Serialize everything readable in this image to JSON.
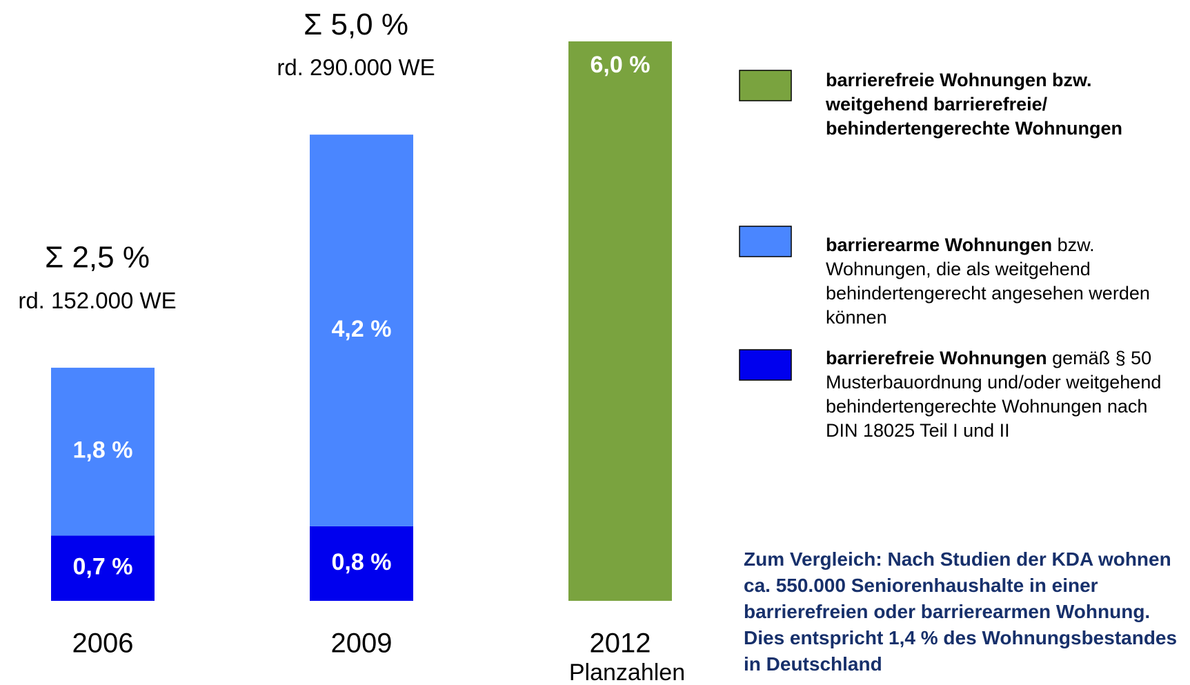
{
  "chart_data": {
    "type": "stacked_bar",
    "categories": [
      "2006",
      "2009",
      "2012"
    ],
    "category_sublabels": [
      null,
      null,
      "Planzahlen"
    ],
    "total_labels": [
      "Σ  2,5 %",
      "Σ  5,0 %",
      null
    ],
    "unit_labels": [
      "rd. 152.000 WE",
      "rd. 290.000 WE",
      null
    ],
    "series": [
      {
        "name": "barrierefreie Wohnungen",
        "description": "gemäß § 50 Musterbauordnung und/oder weitgehend behindertengerechte Wohnungen nach DIN 18025 Teil I und II",
        "color": "#0000ee",
        "values": [
          0.7,
          0.8,
          null
        ],
        "value_labels": [
          "0,7 %",
          "0,8 %",
          null
        ]
      },
      {
        "name": "barrierearme Wohnungen",
        "description": "bzw. Wohnungen, die als weitgehend behindertengerecht angesehen werden können",
        "color": "#4a86ff",
        "values": [
          1.8,
          4.2,
          null
        ],
        "value_labels": [
          "1,8 %",
          "4,2 %",
          null
        ]
      },
      {
        "name": "barrierefreie Wohnungen bzw. weitgehend barrierefreie/ behindertengerechte Wohnungen",
        "color": "#7aa33f",
        "values": [
          null,
          null,
          6.0
        ],
        "value_labels": [
          null,
          null,
          "6,0 %"
        ]
      }
    ],
    "note": "Zum Vergleich: Nach Studien der KDA wohnen ca. 550.000 Seniorenhaushalte in einer barrierefreien oder barrierearmen Wohnung. Dies entspricht 1,4 % des Wohnungsbestandes in Deutschland"
  }
}
